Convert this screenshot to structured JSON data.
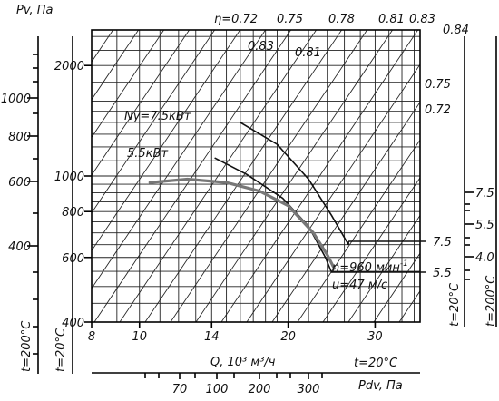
{
  "chart_data": {
    "type": "line",
    "title": "",
    "xlabel": "Q, 10³ м³/ч",
    "ylabel": "Pv, Па",
    "x_scale": "log",
    "y_scale": "log",
    "xlim": [
      8,
      37
    ],
    "ylim": [
      400,
      2500
    ],
    "x_ticks": [
      "8",
      "10",
      "14",
      "20",
      "30"
    ],
    "y_ticks": [
      "400",
      "600",
      "800",
      "1000",
      "2000"
    ],
    "grid": true,
    "left_scale_200C": {
      "label": "t=200°C",
      "ticks": [
        "400",
        "600",
        "800",
        "1000"
      ]
    },
    "pdv_scale": {
      "label": "Pdv, Па",
      "temperature": "t=20°C",
      "ticks": [
        "70",
        "100",
        "200",
        "300"
      ]
    },
    "right_scale_1": {
      "label": "t=20°C",
      "ticks": [
        "7.5",
        "5.5",
        "4.0"
      ]
    },
    "right_scale_2": {
      "label": "t=200°C"
    },
    "efficiency_labels": [
      "η=0.72",
      "0.75",
      "0.78",
      "0.81",
      "0.83",
      "0.84",
      "0.83",
      "0.81",
      "0.75",
      "0.72"
    ],
    "power_curves": [
      {
        "name": "Ny=7.5кВт",
        "end_label": "7.5",
        "points": [
          [
            16,
            1400
          ],
          [
            19,
            1220
          ],
          [
            22,
            980
          ],
          [
            24.5,
            780
          ],
          [
            26.5,
            650
          ]
        ]
      },
      {
        "name": "5.5кВт",
        "end_label": "5.5",
        "points": [
          [
            14.2,
            1120
          ],
          [
            16.5,
            1010
          ],
          [
            19.5,
            870
          ],
          [
            22,
            730
          ],
          [
            23.8,
            600
          ],
          [
            24.5,
            545
          ]
        ]
      }
    ],
    "performance_curve": {
      "label_speed": "n=960 мин",
      "label_speed_exp": "-1",
      "label_velocity": "u=47 м/с",
      "points": [
        [
          10.5,
          960
        ],
        [
          12.5,
          980
        ],
        [
          15,
          960
        ],
        [
          17.5,
          910
        ],
        [
          20,
          830
        ],
        [
          22.5,
          700
        ],
        [
          24,
          610
        ],
        [
          24.8,
          560
        ]
      ]
    }
  }
}
